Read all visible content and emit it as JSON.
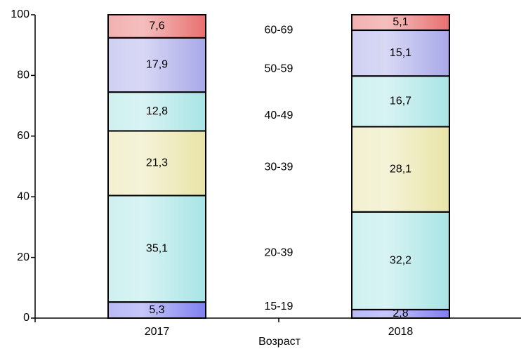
{
  "chart_data": {
    "type": "bar",
    "stacked": true,
    "x_label": "Возраст",
    "categories": [
      "2017",
      "2018"
    ],
    "series": [
      {
        "name": "15-19",
        "color": "#8080f0",
        "values": [
          5.3,
          2.8
        ],
        "value_labels": [
          "5,3",
          "2,8"
        ]
      },
      {
        "name": "20-39",
        "color": "#a8e4e4",
        "values": [
          35.1,
          32.2
        ],
        "value_labels": [
          "35,1",
          "32,2"
        ]
      },
      {
        "name": "30-39",
        "color": "#e8e4a8",
        "values": [
          21.3,
          28.1
        ],
        "value_labels": [
          "21,3",
          "28,1"
        ]
      },
      {
        "name": "40-49",
        "color": "#a8e4e4",
        "values": [
          12.8,
          16.7
        ],
        "value_labels": [
          "12,8",
          "16,7"
        ]
      },
      {
        "name": "50-59",
        "color": "#a8a8e8",
        "values": [
          17.9,
          15.1
        ],
        "value_labels": [
          "17,9",
          "15,1"
        ]
      },
      {
        "name": "60-69",
        "color": "#e87070",
        "values": [
          7.6,
          5.1
        ],
        "value_labels": [
          "7,6",
          "5,1"
        ]
      }
    ],
    "ylim": [
      0,
      100
    ],
    "yticks": [
      0,
      20,
      40,
      60,
      80,
      100
    ],
    "grid": false
  }
}
